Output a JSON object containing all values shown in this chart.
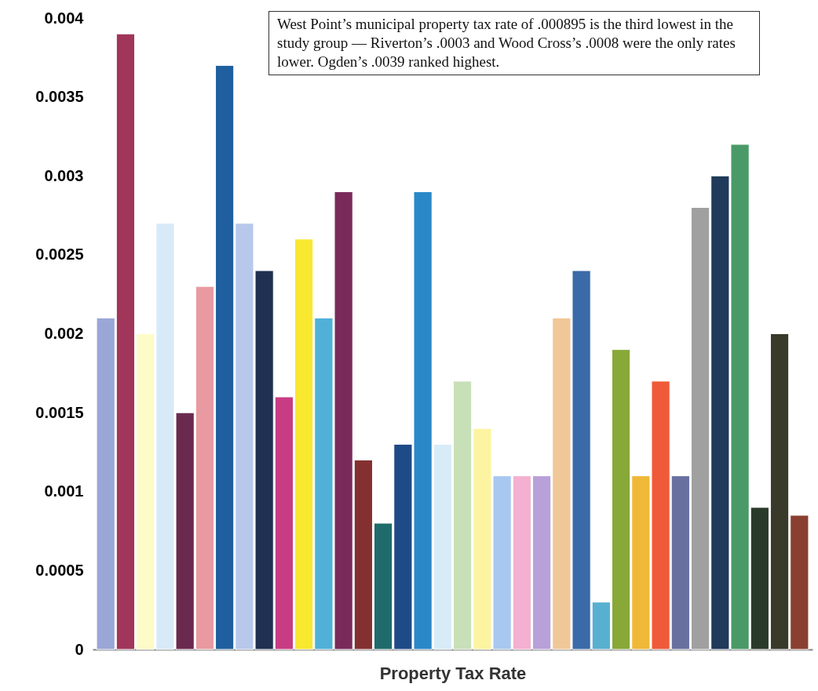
{
  "chart_data": {
    "type": "bar",
    "xlabel": "Property Tax Rate",
    "categories": [
      null,
      null,
      null,
      null,
      null,
      null,
      null,
      null,
      null,
      null,
      null,
      null,
      null,
      null,
      null,
      null,
      null,
      null,
      null,
      null,
      null,
      null,
      null,
      null,
      null,
      null,
      null,
      null,
      null,
      null,
      null,
      null,
      null,
      null,
      null,
      null
    ],
    "values": [
      0.0021,
      0.0039,
      0.002,
      0.0027,
      0.0015,
      0.0023,
      0.0037,
      0.0027,
      0.0024,
      0.0016,
      0.0026,
      0.0021,
      0.0029,
      0.0012,
      0.0008,
      0.0013,
      0.0029,
      0.0013,
      0.0017,
      0.0014,
      0.0011,
      0.0011,
      0.0011,
      0.0021,
      0.0024,
      0.0003,
      0.0019,
      0.0011,
      0.0017,
      0.0011,
      0.0028,
      0.003,
      0.0032,
      0.0009,
      0.002,
      0.00085
    ],
    "colors": [
      "#9aa6d6",
      "#a0365a",
      "#fdfbc8",
      "#d8eaf8",
      "#6a2a50",
      "#e89aa0",
      "#1f5f9f",
      "#b8c8ec",
      "#1f3050",
      "#c83c84",
      "#f8e830",
      "#50b0d8",
      "#7a2a5a",
      "#843030",
      "#1f6a6a",
      "#1f4a88",
      "#2a88c8",
      "#d8ecf8",
      "#c8e0b8",
      "#fcf4a0",
      "#a8c8f0",
      "#f4b0d0",
      "#b8a0d8",
      "#f0c898",
      "#3a6aa8",
      "#58b0d0",
      "#88a838",
      "#f0b838",
      "#f05a38",
      "#6870a0",
      "#a0a0a0",
      "#1f3a5a",
      "#4a9a68",
      "#2a3a2a",
      "#3a3a2a",
      "#8a4030"
    ],
    "ylim": [
      0,
      0.004
    ],
    "yticks": [
      0,
      0.0005,
      0.001,
      0.0015,
      0.002,
      0.0025,
      0.003,
      0.0035,
      0.004
    ],
    "grid": false,
    "legend": false,
    "annotations": [
      "West Point’s municipal property tax rate of .000895 is the third lowest in the study group — Riverton’s .0003 and Wood Cross’s .0008 were the only rates lower. Ogden’s .0039 ranked highest."
    ]
  }
}
